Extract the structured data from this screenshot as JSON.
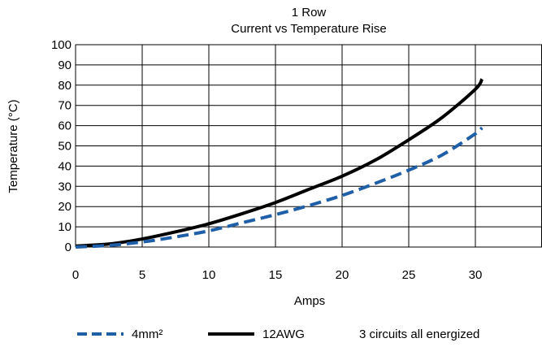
{
  "chart_data": {
    "type": "line",
    "title": "1 Row",
    "subtitle": "Current vs Temperature Rise",
    "xlabel": "Amps",
    "ylabel": "Temperature (°C)",
    "xlim": [
      0,
      35
    ],
    "ylim": [
      0,
      100
    ],
    "x_ticks": [
      0,
      5,
      10,
      15,
      20,
      25,
      30
    ],
    "x_tick_labels": [
      "0",
      "5",
      "10",
      "15",
      "20",
      "25",
      "30"
    ],
    "y_ticks": [
      0,
      10,
      20,
      30,
      40,
      50,
      60,
      70,
      80,
      90,
      100
    ],
    "y_tick_labels": [
      "0",
      "10",
      "20",
      "30",
      "40",
      "50",
      "60",
      "70",
      "80",
      "90",
      "100"
    ],
    "grid": true,
    "legend_position": "bottom",
    "series": [
      {
        "name": "4mm²",
        "color": "#1f5fa8",
        "style": "dashed",
        "x": [
          0,
          2.5,
          5,
          7.5,
          10,
          12.5,
          15,
          17.5,
          20,
          22.5,
          25,
          27.5,
          30,
          30.5
        ],
        "y": [
          0,
          0.8,
          2.5,
          5,
          8,
          12,
          16,
          20.5,
          25.5,
          31.5,
          38,
          45.5,
          56,
          59
        ]
      },
      {
        "name": "12AWG",
        "color": "#000000",
        "style": "solid",
        "x": [
          0,
          2.5,
          5,
          7.5,
          10,
          12.5,
          15,
          17.5,
          20,
          22.5,
          25,
          27.5,
          30,
          30.5
        ],
        "y": [
          0.5,
          1.5,
          4,
          7.5,
          11.5,
          16.5,
          22,
          28.5,
          35,
          43,
          53,
          64,
          78,
          83
        ]
      }
    ],
    "annotation": "3 circuits all energized"
  }
}
